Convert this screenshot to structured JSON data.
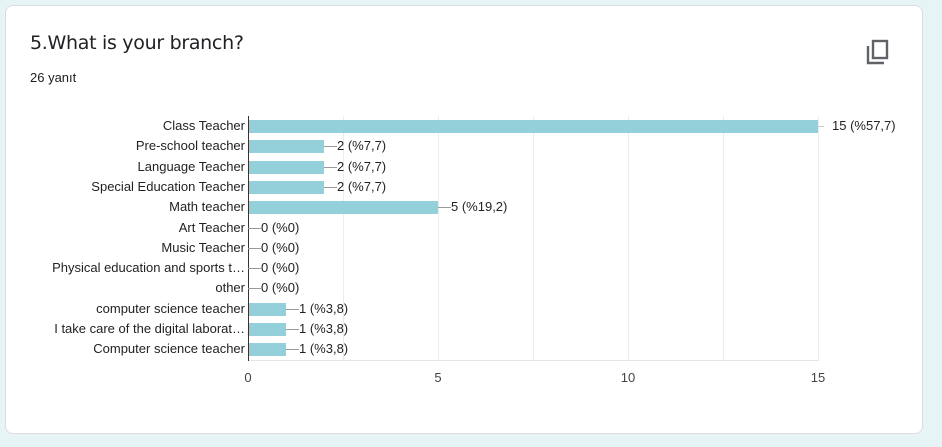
{
  "question": {
    "title": "5.What is your branch?",
    "response_count": "26 yanıt",
    "copy_icon": "copy-icon"
  },
  "colors": {
    "bar": "#93d0d9",
    "page_bg": "#e6f4f5",
    "card_bg": "#ffffff"
  },
  "chart_data": {
    "type": "bar",
    "orientation": "horizontal",
    "title": "5.What is your branch?",
    "xlabel": "",
    "ylabel": "",
    "xlim": [
      0,
      15
    ],
    "x_ticks": [
      "0",
      "5",
      "10",
      "15"
    ],
    "grid": true,
    "legend": "none",
    "categories": [
      "Class Teacher",
      "Pre-school teacher",
      "Language Teacher",
      "Special Education Teacher",
      "Math teacher",
      "Art Teacher",
      "Music Teacher",
      "Physical education and sports t…",
      "other",
      "computer science teacher",
      "I take care of the digital laborat…",
      "Computer science teacher"
    ],
    "values": [
      15,
      2,
      2,
      2,
      5,
      0,
      0,
      0,
      0,
      1,
      1,
      1
    ],
    "data_labels": [
      "15 (%57,7)",
      "2 (%7,7)",
      "2 (%7,7)",
      "2 (%7,7)",
      "5 (%19,2)",
      "0 (%0)",
      "0 (%0)",
      "0 (%0)",
      "0 (%0)",
      "1 (%3,8)",
      "1 (%3,8)",
      "1 (%3,8)"
    ]
  }
}
